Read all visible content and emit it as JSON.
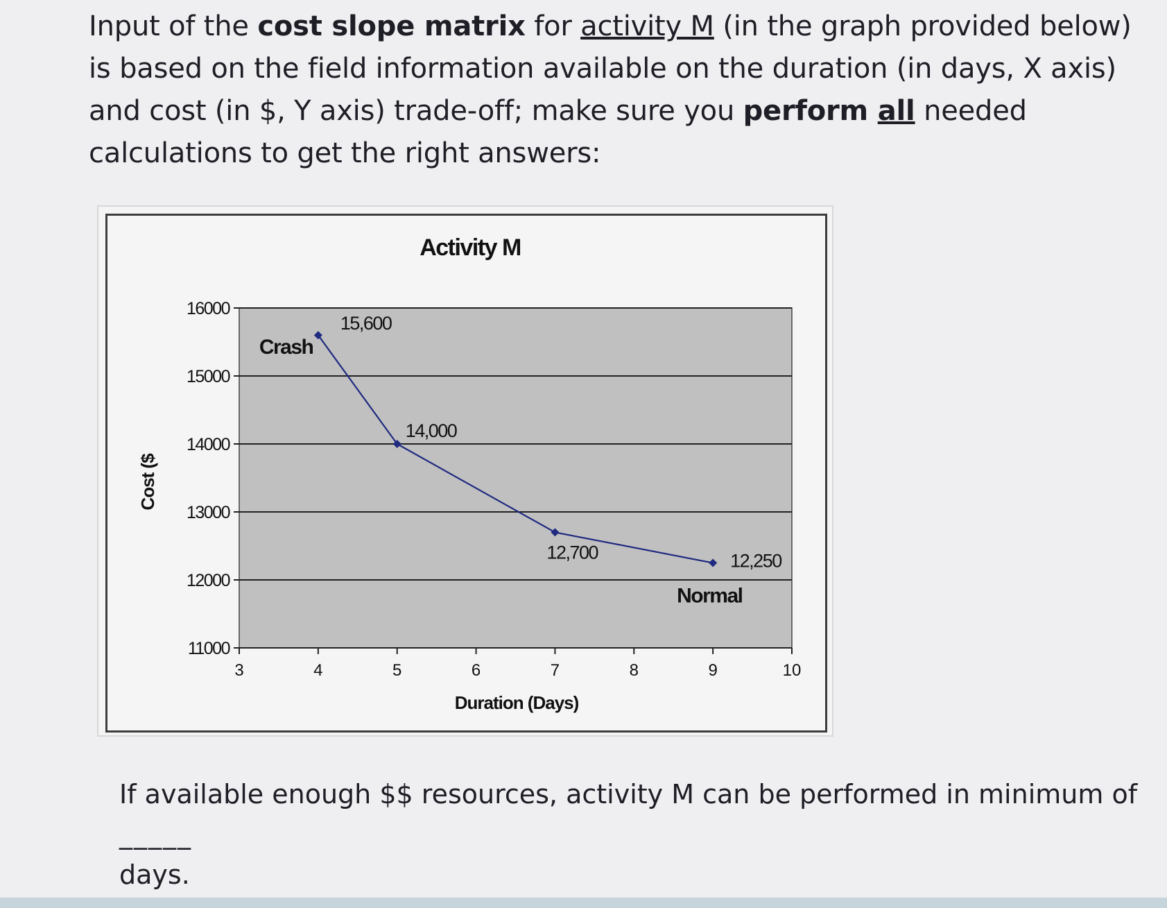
{
  "question": {
    "p1": "Input of the ",
    "b1": "cost slope matrix",
    "p2": " for ",
    "u1": "activity M",
    "p3": " (in the graph provided below) is based on the field information available on the duration (in days, X axis) and cost (in $, Y axis) trade-off; make sure you ",
    "b2": "perform ",
    "bu": "all",
    "p4": " needed calculations to get the right answers:"
  },
  "followup": {
    "text": "If available enough $$ resources, activity M can be performed in minimum of",
    "blank": "_____",
    "end": "days."
  },
  "chart_data": {
    "type": "line",
    "title": "Activity M",
    "xlabel": "Duration (Days)",
    "ylabel": "Cost ($",
    "xlim": [
      3,
      10
    ],
    "ylim": [
      11000,
      16000
    ],
    "x_ticks": [
      3,
      4,
      5,
      6,
      7,
      8,
      9,
      10
    ],
    "y_ticks": [
      11000,
      12000,
      13000,
      14000,
      15000,
      16000
    ],
    "grid": true,
    "series": [
      {
        "points": [
          {
            "x": 4,
            "y": 15600,
            "label": "15,600"
          },
          {
            "x": 5,
            "y": 14000,
            "label": "14,000"
          },
          {
            "x": 7,
            "y": 12700,
            "label": "12,700"
          },
          {
            "x": 9,
            "y": 12250,
            "label": "12,250"
          }
        ]
      }
    ],
    "annotations": [
      {
        "text": "Crash",
        "x": 4,
        "y": 15600
      },
      {
        "text": "Normal",
        "x": 9,
        "y": 12250
      }
    ],
    "colors": {
      "plot_bg": "#c0c0c0",
      "line": "#1f2a80",
      "grid": "#222222"
    }
  }
}
